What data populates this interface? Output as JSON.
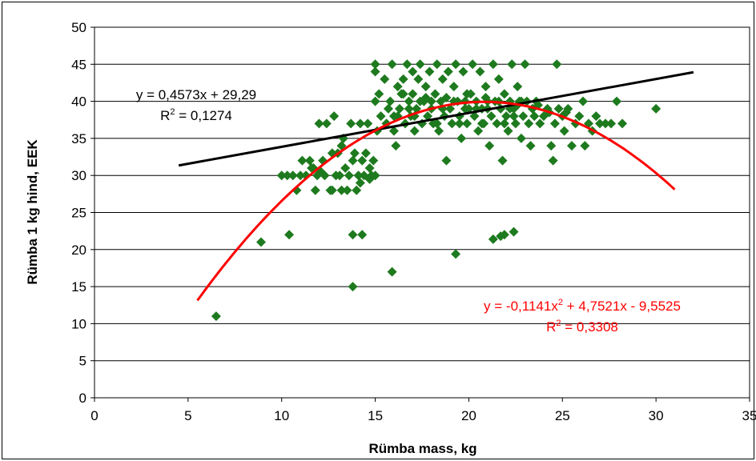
{
  "chart_data": {
    "type": "scatter",
    "xlabel": "Rümba mass, kg",
    "ylabel": "Rümba 1 kg hind, EEK",
    "xlim": [
      0,
      35
    ],
    "ylim": [
      0,
      50
    ],
    "xticks": [
      0,
      5,
      10,
      15,
      20,
      25,
      30,
      35
    ],
    "yticks": [
      0,
      5,
      10,
      15,
      20,
      25,
      30,
      35,
      40,
      45,
      50
    ],
    "grid": "horizontal",
    "marker_color": "#1e7a1e",
    "points": [
      [
        6.5,
        11
      ],
      [
        8.9,
        21
      ],
      [
        10.4,
        22
      ],
      [
        13.8,
        15
      ],
      [
        13.8,
        22
      ],
      [
        14.3,
        22
      ],
      [
        15.9,
        17
      ],
      [
        19.3,
        19.4
      ],
      [
        21.3,
        21.4
      ],
      [
        21.7,
        21.8
      ],
      [
        21.9,
        22
      ],
      [
        22.4,
        22.4
      ],
      [
        10,
        30
      ],
      [
        10.3,
        30
      ],
      [
        10.6,
        30
      ],
      [
        10.8,
        28
      ],
      [
        11,
        30
      ],
      [
        11.1,
        32
      ],
      [
        11.3,
        30
      ],
      [
        11.5,
        32
      ],
      [
        11.7,
        31
      ],
      [
        11.8,
        28
      ],
      [
        11.9,
        30
      ],
      [
        12,
        37
      ],
      [
        12.2,
        32
      ],
      [
        12.3,
        30
      ],
      [
        12.4,
        37
      ],
      [
        12.6,
        28
      ],
      [
        12.7,
        33
      ],
      [
        12.8,
        38
      ],
      [
        12.9,
        30
      ],
      [
        13,
        33
      ],
      [
        13.1,
        30
      ],
      [
        13.2,
        34
      ],
      [
        13.3,
        35
      ],
      [
        13.4,
        31
      ],
      [
        13.5,
        28
      ],
      [
        13.6,
        30
      ],
      [
        13.7,
        37
      ],
      [
        13.8,
        32
      ],
      [
        13.9,
        33
      ],
      [
        14,
        28
      ],
      [
        14.1,
        30
      ],
      [
        14.2,
        37
      ],
      [
        14.3,
        32
      ],
      [
        14.4,
        30
      ],
      [
        14.5,
        33
      ],
      [
        14.6,
        37
      ],
      [
        14.7,
        31
      ],
      [
        14.8,
        30
      ],
      [
        14.9,
        32
      ],
      [
        15,
        30
      ],
      [
        15.1,
        36
      ],
      [
        12.7,
        28
      ],
      [
        13.2,
        28
      ],
      [
        14.2,
        29
      ],
      [
        14.7,
        29.5
      ],
      [
        11.6,
        31
      ],
      [
        12.1,
        30.5
      ],
      [
        15,
        45
      ],
      [
        15,
        44
      ],
      [
        15,
        40
      ],
      [
        15.2,
        41
      ],
      [
        15.3,
        38
      ],
      [
        15.5,
        43
      ],
      [
        15.6,
        37
      ],
      [
        15.7,
        39
      ],
      [
        15.8,
        40
      ],
      [
        15.9,
        45
      ],
      [
        16,
        38
      ],
      [
        16,
        36
      ],
      [
        16.1,
        34
      ],
      [
        16.2,
        42
      ],
      [
        16.3,
        39
      ],
      [
        16.4,
        41
      ],
      [
        16.5,
        43
      ],
      [
        16.6,
        37
      ],
      [
        16.7,
        45
      ],
      [
        16.8,
        40
      ],
      [
        16.9,
        38
      ],
      [
        17,
        44
      ],
      [
        17,
        41
      ],
      [
        17.1,
        36
      ],
      [
        17.2,
        39
      ],
      [
        17.3,
        43
      ],
      [
        17.4,
        45
      ],
      [
        17.5,
        37
      ],
      [
        17.6,
        40
      ],
      [
        17.7,
        42
      ],
      [
        17.8,
        38
      ],
      [
        17.9,
        44
      ],
      [
        18,
        39
      ],
      [
        18.1,
        37
      ],
      [
        18.2,
        41
      ],
      [
        18.3,
        45
      ],
      [
        18.4,
        36
      ],
      [
        18.5,
        40
      ],
      [
        18.6,
        43
      ],
      [
        18.7,
        38
      ],
      [
        18.8,
        32
      ],
      [
        18.9,
        44
      ],
      [
        19,
        39
      ],
      [
        19.1,
        37
      ],
      [
        19.2,
        42
      ],
      [
        19.3,
        45
      ],
      [
        19.4,
        40
      ],
      [
        19.5,
        38
      ],
      [
        19.6,
        35
      ],
      [
        19.7,
        44
      ],
      [
        19.8,
        40
      ],
      [
        19.9,
        37
      ],
      [
        20,
        39
      ],
      [
        20.1,
        41
      ],
      [
        20.2,
        45
      ],
      [
        20.3,
        38
      ],
      [
        20.4,
        40
      ],
      [
        20.5,
        36
      ],
      [
        20.6,
        44
      ],
      [
        20.7,
        39
      ],
      [
        20.8,
        37
      ],
      [
        20.9,
        42
      ],
      [
        21,
        40
      ],
      [
        21.1,
        34
      ],
      [
        21.2,
        38
      ],
      [
        21.3,
        45
      ],
      [
        21.4,
        40
      ],
      [
        21.5,
        37
      ],
      [
        21.6,
        43
      ],
      [
        21.7,
        39
      ],
      [
        21.8,
        32
      ],
      [
        21.9,
        41
      ],
      [
        22,
        38
      ],
      [
        22.1,
        36
      ],
      [
        22.2,
        40
      ],
      [
        22.3,
        45
      ],
      [
        22.4,
        39
      ],
      [
        22.5,
        37
      ],
      [
        22.6,
        42
      ],
      [
        22.7,
        40
      ],
      [
        22.8,
        35
      ],
      [
        22.9,
        38
      ],
      [
        23,
        45
      ],
      [
        23.1,
        40
      ],
      [
        23.2,
        37
      ],
      [
        23.3,
        34
      ],
      [
        23.4,
        39
      ],
      [
        23.5,
        38
      ],
      [
        23.6,
        40
      ],
      [
        23.8,
        37
      ],
      [
        24,
        38
      ],
      [
        24.2,
        39
      ],
      [
        24.4,
        34
      ],
      [
        24.5,
        32
      ],
      [
        24.6,
        37
      ],
      [
        24.7,
        45
      ],
      [
        24.8,
        39
      ],
      [
        25,
        38
      ],
      [
        25.1,
        36
      ],
      [
        25.3,
        39
      ],
      [
        25.5,
        34
      ],
      [
        25.7,
        37
      ],
      [
        25.9,
        38
      ],
      [
        26.1,
        40
      ],
      [
        26.2,
        34
      ],
      [
        26.4,
        37
      ],
      [
        26.6,
        36
      ],
      [
        26.8,
        38
      ],
      [
        27,
        37
      ],
      [
        27.3,
        37
      ],
      [
        27.6,
        37
      ],
      [
        27.9,
        40
      ],
      [
        28.2,
        37
      ],
      [
        30,
        39
      ],
      [
        16.2,
        38
      ],
      [
        16.8,
        39
      ],
      [
        17.4,
        40
      ],
      [
        18,
        40
      ],
      [
        18.6,
        39
      ],
      [
        19.2,
        40
      ],
      [
        19.8,
        39
      ],
      [
        20.4,
        39
      ],
      [
        21,
        39
      ],
      [
        21.6,
        40
      ],
      [
        22.2,
        39
      ],
      [
        22.8,
        40
      ],
      [
        23.4,
        39
      ],
      [
        15.6,
        37
      ],
      [
        18.3,
        37
      ],
      [
        19.5,
        37
      ],
      [
        20.7,
        37
      ],
      [
        21.9,
        37
      ],
      [
        22.4,
        38
      ],
      [
        17.1,
        38
      ],
      [
        16.5,
        41
      ],
      [
        19.9,
        41
      ],
      [
        18.8,
        40.5
      ],
      [
        17.7,
        40.5
      ],
      [
        20.9,
        40.5
      ],
      [
        22.6,
        39.5
      ],
      [
        23.7,
        39.5
      ],
      [
        24.3,
        38.5
      ],
      [
        25.2,
        38.5
      ]
    ],
    "linear_trend": {
      "equation": "y = 0,4573x + 29,29",
      "r2_prefix": "R",
      "r2_sup": "2",
      "r2_value": " = 0,1274",
      "slope": 0.4573,
      "intercept": 29.29,
      "x_range": [
        4.5,
        32
      ],
      "color": "#000000"
    },
    "poly_trend": {
      "equation_a": "y = -0,1141x",
      "equation_sup": "2",
      "equation_b": " + 4,7521x - 9,5525",
      "r2_prefix": "R",
      "r2_sup": "2",
      "r2_value": " = 0,3308",
      "a": -0.1141,
      "b": 4.7521,
      "c": -9.5525,
      "x_range": [
        5.5,
        31
      ],
      "color": "#ff0000"
    }
  }
}
